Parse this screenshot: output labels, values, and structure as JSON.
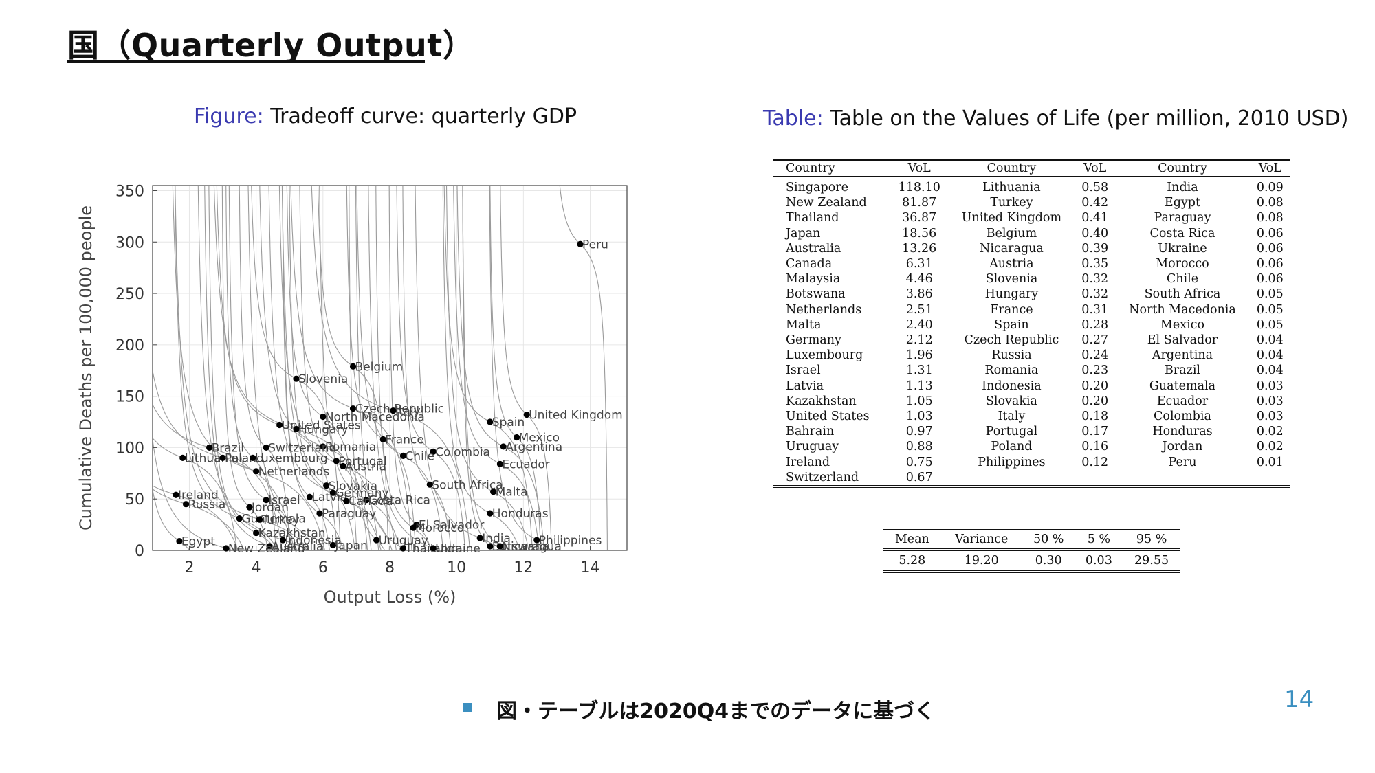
{
  "slide": {
    "title": "国（Quarterly Output）",
    "bullet": "図・テーブルは2020Q4までのデータに基づく",
    "page_number": "14",
    "accent_color": "#3b8fc0"
  },
  "figure": {
    "caption_tag": "Figure:",
    "caption": "Tradeoff curve: quarterly GDP"
  },
  "table": {
    "caption_tag": "Table:",
    "caption": "Table on the Values of Life (per million, 2010 USD)",
    "headers": [
      "Country",
      "VoL",
      "Country",
      "VoL",
      "Country",
      "VoL"
    ],
    "rows": [
      [
        "Singapore",
        "118.10",
        "Lithuania",
        "0.58",
        "India",
        "0.09"
      ],
      [
        "New Zealand",
        "81.87",
        "Turkey",
        "0.42",
        "Egypt",
        "0.08"
      ],
      [
        "Thailand",
        "36.87",
        "United Kingdom",
        "0.41",
        "Paraguay",
        "0.08"
      ],
      [
        "Japan",
        "18.56",
        "Belgium",
        "0.40",
        "Costa Rica",
        "0.06"
      ],
      [
        "Australia",
        "13.26",
        "Nicaragua",
        "0.39",
        "Ukraine",
        "0.06"
      ],
      [
        "Canada",
        "6.31",
        "Austria",
        "0.35",
        "Morocco",
        "0.06"
      ],
      [
        "Malaysia",
        "4.46",
        "Slovenia",
        "0.32",
        "Chile",
        "0.06"
      ],
      [
        "Botswana",
        "3.86",
        "Hungary",
        "0.32",
        "South Africa",
        "0.05"
      ],
      [
        "Netherlands",
        "2.51",
        "France",
        "0.31",
        "North Macedonia",
        "0.05"
      ],
      [
        "Malta",
        "2.40",
        "Spain",
        "0.28",
        "Mexico",
        "0.05"
      ],
      [
        "Germany",
        "2.12",
        "Czech Republic",
        "0.27",
        "El Salvador",
        "0.04"
      ],
      [
        "Luxembourg",
        "1.96",
        "Russia",
        "0.24",
        "Argentina",
        "0.04"
      ],
      [
        "Israel",
        "1.31",
        "Romania",
        "0.23",
        "Brazil",
        "0.04"
      ],
      [
        "Latvia",
        "1.13",
        "Indonesia",
        "0.20",
        "Guatemala",
        "0.03"
      ],
      [
        "Kazakhstan",
        "1.05",
        "Slovakia",
        "0.20",
        "Ecuador",
        "0.03"
      ],
      [
        "United States",
        "1.03",
        "Italy",
        "0.18",
        "Colombia",
        "0.03"
      ],
      [
        "Bahrain",
        "0.97",
        "Portugal",
        "0.17",
        "Honduras",
        "0.02"
      ],
      [
        "Uruguay",
        "0.88",
        "Poland",
        "0.16",
        "Jordan",
        "0.02"
      ],
      [
        "Ireland",
        "0.75",
        "Philippines",
        "0.12",
        "Peru",
        "0.01"
      ],
      [
        "Switzerland",
        "0.67",
        "",
        "",
        "",
        ""
      ]
    ]
  },
  "stats": {
    "headers": [
      "Mean",
      "Variance",
      "50 %",
      "5 %",
      "95 %"
    ],
    "values": [
      "5.28",
      "19.20",
      "0.30",
      "0.03",
      "29.55"
    ]
  },
  "chart_data": {
    "type": "scatter",
    "xlabel": "Output Loss (%)",
    "ylabel": "Cumulative Deaths per 100,000 people",
    "xlim": [
      0.9,
      15.1
    ],
    "ylim": [
      0,
      355
    ],
    "xticks": [
      2,
      4,
      6,
      8,
      10,
      12,
      14
    ],
    "yticks": [
      0,
      50,
      100,
      150,
      200,
      250,
      300,
      350
    ],
    "grid": true,
    "points": [
      {
        "label": "Peru",
        "x": 13.7,
        "y": 298
      },
      {
        "label": "Belgium",
        "x": 6.9,
        "y": 179
      },
      {
        "label": "Slovenia",
        "x": 5.2,
        "y": 167
      },
      {
        "label": "Czech Republic",
        "x": 6.9,
        "y": 138
      },
      {
        "label": "Italy",
        "x": 8.1,
        "y": 136
      },
      {
        "label": "United Kingdom",
        "x": 12.1,
        "y": 132
      },
      {
        "label": "North Macedonia",
        "x": 6.0,
        "y": 130
      },
      {
        "label": "Spain",
        "x": 11.0,
        "y": 125
      },
      {
        "label": "United States",
        "x": 4.7,
        "y": 122
      },
      {
        "label": "Hungary",
        "x": 5.2,
        "y": 118
      },
      {
        "label": "Mexico",
        "x": 11.8,
        "y": 110
      },
      {
        "label": "France",
        "x": 7.8,
        "y": 108
      },
      {
        "label": "Argentina",
        "x": 11.4,
        "y": 101
      },
      {
        "label": "Romania",
        "x": 6.0,
        "y": 101
      },
      {
        "label": "Brazil",
        "x": 2.6,
        "y": 100
      },
      {
        "label": "Switzerland",
        "x": 4.3,
        "y": 100
      },
      {
        "label": "Colombia",
        "x": 9.3,
        "y": 96
      },
      {
        "label": "Chile",
        "x": 8.4,
        "y": 92
      },
      {
        "label": "Lithuania",
        "x": 1.8,
        "y": 90
      },
      {
        "label": "Poland",
        "x": 3.0,
        "y": 90
      },
      {
        "label": "Luxembourg",
        "x": 3.9,
        "y": 90
      },
      {
        "label": "Portugal",
        "x": 6.4,
        "y": 87
      },
      {
        "label": "Ecuador",
        "x": 11.3,
        "y": 84
      },
      {
        "label": "Austria",
        "x": 6.6,
        "y": 82
      },
      {
        "label": "Netherlands",
        "x": 4.0,
        "y": 77
      },
      {
        "label": "South Africa",
        "x": 9.2,
        "y": 64
      },
      {
        "label": "Slovakia",
        "x": 6.1,
        "y": 63
      },
      {
        "label": "Malta",
        "x": 11.1,
        "y": 57
      },
      {
        "label": "Germany",
        "x": 6.3,
        "y": 56
      },
      {
        "label": "Ireland",
        "x": 1.6,
        "y": 54
      },
      {
        "label": "Latvia",
        "x": 5.6,
        "y": 52
      },
      {
        "label": "Israel",
        "x": 4.3,
        "y": 49
      },
      {
        "label": "Costa Rica",
        "x": 7.3,
        "y": 49
      },
      {
        "label": "Canada",
        "x": 6.7,
        "y": 48
      },
      {
        "label": "Russia",
        "x": 1.9,
        "y": 45
      },
      {
        "label": "Jordan",
        "x": 3.8,
        "y": 42
      },
      {
        "label": "Paraguay",
        "x": 5.9,
        "y": 36
      },
      {
        "label": "Honduras",
        "x": 11.0,
        "y": 36
      },
      {
        "label": "Guatemala",
        "x": 3.5,
        "y": 31
      },
      {
        "label": "Turkey",
        "x": 4.1,
        "y": 30
      },
      {
        "label": "El Salvador",
        "x": 8.8,
        "y": 25
      },
      {
        "label": "Morocco",
        "x": 8.7,
        "y": 22
      },
      {
        "label": "Kazakhstan",
        "x": 4.0,
        "y": 17
      },
      {
        "label": "India",
        "x": 10.7,
        "y": 12
      },
      {
        "label": "Indonesia",
        "x": 4.8,
        "y": 10
      },
      {
        "label": "Uruguay",
        "x": 7.6,
        "y": 10
      },
      {
        "label": "Egypt",
        "x": 1.7,
        "y": 9
      },
      {
        "label": "Philippines",
        "x": 12.4,
        "y": 10
      },
      {
        "label": "Australia",
        "x": 4.4,
        "y": 4
      },
      {
        "label": "Japan",
        "x": 6.3,
        "y": 5
      },
      {
        "label": "Botswana",
        "x": 11.0,
        "y": 4
      },
      {
        "label": "Nicaragua",
        "x": 11.3,
        "y": 4
      },
      {
        "label": "Thailand",
        "x": 8.4,
        "y": 2
      },
      {
        "label": "Ukraine",
        "x": 9.3,
        "y": 2
      },
      {
        "label": "New Zealand",
        "x": 3.1,
        "y": 2
      }
    ]
  }
}
